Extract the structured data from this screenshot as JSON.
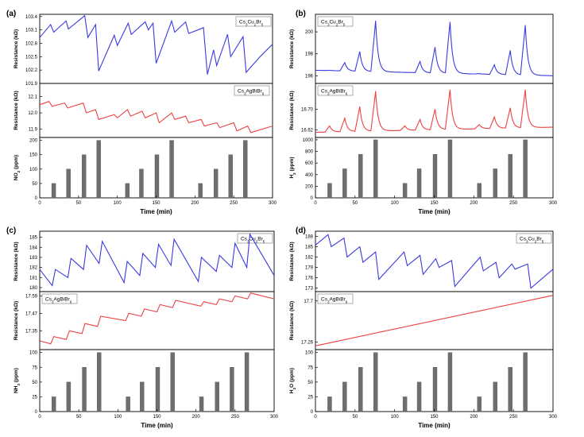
{
  "chart_data": [
    {
      "panel": "(a)",
      "type": "line",
      "xlabel": "Time (min)",
      "xlim": [
        0,
        300
      ],
      "xticks": [
        "0",
        "50",
        "100",
        "150",
        "200",
        "250",
        "300"
      ],
      "subplots": [
        {
          "ylabel": "Resistance (kΩ)",
          "legend": "Cs3Cu2Br5",
          "color": "#3a3ae0",
          "ylim": [
            101.9,
            103.45
          ],
          "yticks": [
            "101.9",
            "102.2",
            "102.5",
            "102.8",
            "103.1",
            "103.4"
          ],
          "x": [
            0,
            14,
            18,
            34,
            37,
            58,
            62,
            72,
            76,
            96,
            100,
            114,
            118,
            136,
            140,
            146,
            150,
            170,
            174,
            188,
            192,
            211,
            216,
            224,
            228,
            242,
            246,
            262,
            266,
            284,
            300
          ],
          "values": [
            102.93,
            103.22,
            103.05,
            103.3,
            103.12,
            103.42,
            102.93,
            103.22,
            102.18,
            102.98,
            102.75,
            103.25,
            103.0,
            103.28,
            103.1,
            103.25,
            102.35,
            103.3,
            103.05,
            103.28,
            103.02,
            103.15,
            102.1,
            102.65,
            102.3,
            103.0,
            102.5,
            102.95,
            102.15,
            102.5,
            102.78
          ]
        },
        {
          "ylabel": "Resistance (kΩ)",
          "legend": "Cs3AgBiBr6",
          "color": "#ef4040",
          "ylim": [
            11.85,
            12.18
          ],
          "yticks": [
            "11.9",
            "12.0",
            "12.1"
          ],
          "x": [
            0,
            12,
            16,
            32,
            36,
            56,
            60,
            72,
            76,
            96,
            100,
            113,
            117,
            132,
            136,
            150,
            154,
            170,
            174,
            188,
            192,
            208,
            212,
            228,
            232,
            250,
            254,
            268,
            272,
            300
          ],
          "values": [
            12.05,
            12.07,
            12.04,
            12.06,
            12.03,
            12.06,
            12.0,
            12.02,
            11.96,
            11.99,
            11.97,
            12.02,
            11.98,
            12.01,
            11.97,
            12.0,
            11.94,
            12.0,
            11.96,
            11.98,
            11.94,
            11.96,
            11.92,
            11.94,
            11.91,
            11.94,
            11.89,
            11.92,
            11.88,
            11.92
          ]
        }
      ],
      "bars": {
        "ylabel": "NO2 (ppm)",
        "ylim": [
          0,
          210
        ],
        "yticks": [
          "0",
          "50",
          "100",
          "150",
          "200"
        ],
        "x": [
          18,
          37,
          57,
          76,
          113,
          131,
          151,
          170,
          207,
          227,
          246,
          265
        ],
        "values": [
          50,
          100,
          150,
          200,
          50,
          100,
          150,
          200,
          50,
          100,
          150,
          200
        ]
      }
    },
    {
      "panel": "(b)",
      "type": "line",
      "xlabel": "Time (min)",
      "xlim": [
        0,
        300
      ],
      "xticks": [
        "0",
        "50",
        "100",
        "150",
        "200",
        "250",
        "300"
      ],
      "subplots": [
        {
          "ylabel": "Resistance (kΩ)",
          "legend": "Cs3Cu2Br5",
          "color": "#3a3ae0",
          "ylim": [
            195.3,
            201.6
          ],
          "yticks": [
            "196",
            "198",
            "200"
          ],
          "spikes": [
            [
              18,
              196.5
            ],
            [
              37,
              197.2
            ],
            [
              56,
              198.2
            ],
            [
              76,
              201.0
            ],
            [
              113,
              196.3
            ],
            [
              132,
              197.3
            ],
            [
              151,
              198.6
            ],
            [
              170,
              200.9
            ],
            [
              207,
              196.2
            ],
            [
              226,
              197.0
            ],
            [
              246,
              198.3
            ],
            [
              265,
              200.6
            ]
          ],
          "baseline": [
            196.5,
            196.0
          ]
        },
        {
          "ylabel": "Resistance (kΩ)",
          "legend": "Cs3AgBiBr6",
          "color": "#ef4040",
          "ylim": [
            16.59,
            16.8
          ],
          "yticks": [
            "16.62",
            "16.70"
          ],
          "spikes": [
            [
              18,
              16.635
            ],
            [
              37,
              16.665
            ],
            [
              56,
              16.71
            ],
            [
              76,
              16.77
            ],
            [
              113,
              16.635
            ],
            [
              132,
              16.66
            ],
            [
              151,
              16.7
            ],
            [
              170,
              16.775
            ],
            [
              207,
              16.64
            ],
            [
              226,
              16.67
            ],
            [
              246,
              16.705
            ],
            [
              265,
              16.775
            ]
          ],
          "baseline": [
            16.61,
            16.63
          ]
        }
      ],
      "bars": {
        "ylabel": "H2 (ppm)",
        "ylim": [
          0,
          1040
        ],
        "yticks": [
          "0",
          "200",
          "400",
          "600",
          "800",
          "1000"
        ],
        "x": [
          18,
          37,
          57,
          76,
          113,
          131,
          151,
          170,
          207,
          227,
          246,
          265
        ],
        "values": [
          250,
          500,
          750,
          1000,
          250,
          500,
          750,
          1000,
          250,
          500,
          750,
          1000
        ]
      }
    },
    {
      "panel": "(c)",
      "type": "line",
      "xlabel": "Time (min)",
      "xlim": [
        0,
        300
      ],
      "xticks": [
        "0",
        "50",
        "100",
        "150",
        "200",
        "250",
        "300"
      ],
      "subplots": [
        {
          "ylabel": "Resistance (kΩ)",
          "legend": "Cs3Cu2Br5",
          "color": "#3a3ae0",
          "ylim": [
            179.6,
            185.6
          ],
          "yticks": [
            "180",
            "181",
            "182",
            "183",
            "184",
            "185"
          ],
          "x": [
            0,
            16,
            20,
            36,
            40,
            56,
            60,
            76,
            80,
            108,
            112,
            128,
            132,
            148,
            152,
            168,
            172,
            203,
            207,
            226,
            230,
            246,
            250,
            265,
            269,
            300
          ],
          "values": [
            181.8,
            180.2,
            181.8,
            181.0,
            182.9,
            181.8,
            184.2,
            182.4,
            184.6,
            180.5,
            182.6,
            181.2,
            183.4,
            182.0,
            184.3,
            182.2,
            184.8,
            180.6,
            183.0,
            181.6,
            183.2,
            182.0,
            184.4,
            182.0,
            185.3,
            181.2
          ]
        },
        {
          "ylabel": "Resistance (kΩ)",
          "legend": "Cs3AgBiBr6",
          "color": "#ef4040",
          "ylim": [
            17.22,
            17.62
          ],
          "yticks": [
            "17.35",
            "17.47",
            "17.59"
          ],
          "x": [
            0,
            14,
            18,
            34,
            38,
            54,
            58,
            74,
            78,
            110,
            114,
            130,
            134,
            150,
            154,
            170,
            174,
            206,
            210,
            226,
            230,
            246,
            250,
            266,
            270,
            300
          ],
          "values": [
            17.28,
            17.26,
            17.31,
            17.29,
            17.35,
            17.33,
            17.4,
            17.38,
            17.45,
            17.42,
            17.47,
            17.45,
            17.5,
            17.48,
            17.53,
            17.51,
            17.56,
            17.52,
            17.55,
            17.53,
            17.57,
            17.55,
            17.59,
            17.57,
            17.61,
            17.57
          ]
        }
      ],
      "bars": {
        "ylabel": "NH3 (ppm)",
        "ylim": [
          0,
          105
        ],
        "yticks": [
          "0",
          "25",
          "50",
          "75",
          "100"
        ],
        "x": [
          18,
          37,
          57,
          76,
          113,
          131,
          151,
          170,
          207,
          227,
          246,
          265
        ],
        "values": [
          25,
          50,
          75,
          100,
          25,
          50,
          75,
          100,
          25,
          50,
          75,
          100
        ]
      }
    },
    {
      "panel": "(d)",
      "type": "line",
      "xlabel": "Time (min)",
      "xlim": [
        0,
        300
      ],
      "xticks": [
        "0",
        "50",
        "100",
        "150",
        "200",
        "250",
        "300"
      ],
      "subplots": [
        {
          "ylabel": "Resistance (kΩ)",
          "legend": "Cs3Cu2Br5",
          "color": "#3a3ae0",
          "ylim": [
            172,
            189.5
          ],
          "yticks": [
            "173",
            "176",
            "179",
            "182",
            "185",
            "188"
          ],
          "x": [
            0,
            16,
            20,
            36,
            40,
            56,
            60,
            76,
            80,
            112,
            116,
            132,
            136,
            152,
            156,
            172,
            176,
            208,
            212,
            228,
            232,
            248,
            252,
            268,
            272,
            300
          ],
          "values": [
            185.5,
            188.5,
            185.0,
            187.5,
            182.0,
            185.0,
            180.5,
            183.5,
            175.5,
            183.5,
            179.5,
            182.5,
            177.0,
            181.5,
            179.0,
            181.0,
            173.5,
            182.0,
            178.0,
            180.5,
            176.0,
            180.0,
            178.5,
            180.0,
            173.0,
            178.5
          ]
        },
        {
          "ylabel": "Resistance (kΩ)",
          "legend": "Cs3AgBiBr6",
          "color": "#ef4040",
          "ylim": [
            17.18,
            17.8
          ],
          "yticks": [
            "17.26",
            "17.7"
          ],
          "x": [
            0,
            300
          ],
          "values": [
            17.22,
            17.76
          ]
        }
      ],
      "bars": {
        "ylabel": "H2O (ppm)",
        "ylim": [
          0,
          105
        ],
        "yticks": [
          "0",
          "25",
          "50",
          "75",
          "100"
        ],
        "x": [
          18,
          37,
          57,
          76,
          113,
          131,
          151,
          170,
          207,
          227,
          246,
          265
        ],
        "values": [
          25,
          50,
          75,
          100,
          25,
          50,
          75,
          100,
          25,
          50,
          75,
          100
        ]
      }
    }
  ]
}
